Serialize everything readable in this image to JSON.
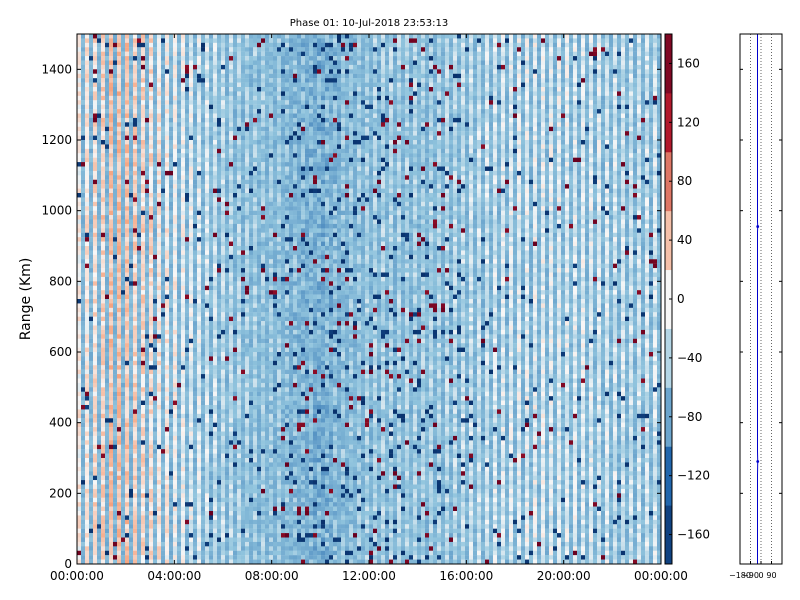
{
  "chart_data": [
    {
      "type": "heatmap",
      "title": "Phase 01: 10-Jul-2018 23:53:13",
      "xlabel": "",
      "ylabel": "Range (Km)",
      "x_ticks": [
        "00:00:00",
        "04:00:00",
        "08:00:00",
        "12:00:00",
        "16:00:00",
        "20:00:00",
        "00:00:00"
      ],
      "x_range": [
        "00:00:00",
        "24:00:00"
      ],
      "y_ticks": [
        0,
        200,
        400,
        600,
        800,
        1000,
        1200,
        1400
      ],
      "ylim": [
        0,
        1500
      ],
      "colorbar": {
        "ticks": [
          160,
          120,
          80,
          40,
          0,
          -40,
          -80,
          -120,
          -160
        ],
        "range": [
          -180,
          180
        ],
        "colormap": "diverging blue-white-red",
        "low_color": "#08306b",
        "mid_color": "#f7f7f7",
        "high_color": "#67001f"
      },
      "column_mean_phase_profile": [
        {
          "hour": 0.0,
          "mean": 5
        },
        {
          "hour": 0.5,
          "mean": 15
        },
        {
          "hour": 1.0,
          "mean": 25
        },
        {
          "hour": 1.5,
          "mean": 40
        },
        {
          "hour": 2.0,
          "mean": 35
        },
        {
          "hour": 2.5,
          "mean": 25
        },
        {
          "hour": 3.0,
          "mean": 20
        },
        {
          "hour": 3.5,
          "mean": 10
        },
        {
          "hour": 4.0,
          "mean": 0
        },
        {
          "hour": 5.0,
          "mean": -15
        },
        {
          "hour": 6.0,
          "mean": -30
        },
        {
          "hour": 7.0,
          "mean": -45
        },
        {
          "hour": 8.0,
          "mean": -50
        },
        {
          "hour": 9.0,
          "mean": -60
        },
        {
          "hour": 10.0,
          "mean": -70
        },
        {
          "hour": 11.0,
          "mean": -55
        },
        {
          "hour": 12.0,
          "mean": -45
        },
        {
          "hour": 13.0,
          "mean": -40
        },
        {
          "hour": 14.0,
          "mean": -45
        },
        {
          "hour": 15.0,
          "mean": -40
        },
        {
          "hour": 16.0,
          "mean": -30
        },
        {
          "hour": 17.0,
          "mean": -20
        },
        {
          "hour": 18.0,
          "mean": -15
        },
        {
          "hour": 19.0,
          "mean": -10
        },
        {
          "hour": 20.0,
          "mean": -15
        },
        {
          "hour": 21.0,
          "mean": -15
        },
        {
          "hour": 22.0,
          "mean": -20
        },
        {
          "hour": 23.0,
          "mean": -25
        },
        {
          "hour": 24.0,
          "mean": -20
        }
      ],
      "grid": false
    },
    {
      "type": "line",
      "x_ticks": [
        "−180",
        "−90",
        "0",
        "90"
      ],
      "xlim": [
        -180,
        180
      ],
      "ylim": [
        0,
        1500
      ],
      "series": [
        {
          "values": [
            {
              "x": -30,
              "y": 0
            },
            {
              "x": -30,
              "y": 250
            },
            {
              "x": -28,
              "y": 290
            },
            {
              "x": -30,
              "y": 320
            },
            {
              "x": -30,
              "y": 940
            },
            {
              "x": -28,
              "y": 955
            },
            {
              "x": -30,
              "y": 970
            },
            {
              "x": -30,
              "y": 1500
            }
          ]
        }
      ],
      "grid": "vertical dotted",
      "line_color": "#0000cc"
    }
  ]
}
